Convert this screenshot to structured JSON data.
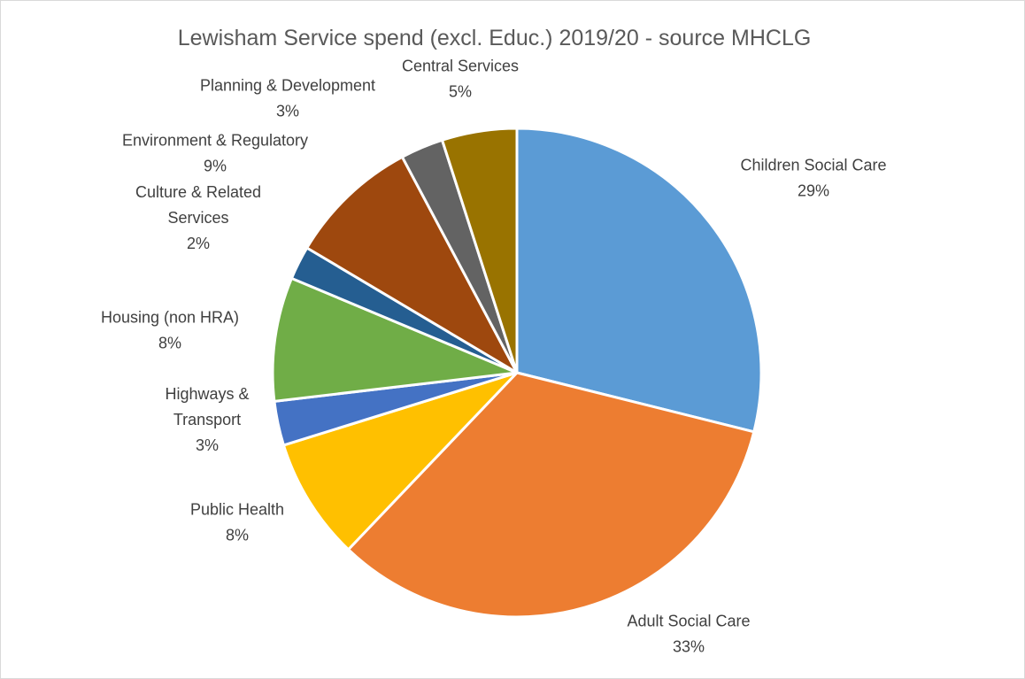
{
  "chart_data": {
    "type": "pie",
    "title": "Lewisham Service spend (excl. Educ.) 2019/20 - source MHCLG",
    "slices": [
      {
        "name": "Children Social Care",
        "label_lines": [
          "Children Social Care"
        ],
        "percent_label": "29%",
        "value": 28.6,
        "color": "#5B9BD5"
      },
      {
        "name": "Adult Social Care",
        "label_lines": [
          "Adult Social Care"
        ],
        "percent_label": "33%",
        "value": 32.9,
        "color": "#ED7D31"
      },
      {
        "name": "Public Health",
        "label_lines": [
          "Public Health"
        ],
        "percent_label": "8%",
        "value": 8.0,
        "color": "#FFC000"
      },
      {
        "name": "Highways & Transport",
        "label_lines": [
          "Highways &",
          "Transport"
        ],
        "percent_label": "3%",
        "value": 2.9,
        "color": "#4472C4"
      },
      {
        "name": "Housing (non HRA)",
        "label_lines": [
          "Housing (non HRA)"
        ],
        "percent_label": "8%",
        "value": 8.1,
        "color": "#70AD47"
      },
      {
        "name": "Culture & Related Services",
        "label_lines": [
          "Culture & Related",
          "Services"
        ],
        "percent_label": "2%",
        "value": 2.2,
        "color": "#255E91"
      },
      {
        "name": "Environment & Regulatory",
        "label_lines": [
          "Environment & Regulatory"
        ],
        "percent_label": "9%",
        "value": 8.6,
        "color": "#9E480E"
      },
      {
        "name": "Planning & Development",
        "label_lines": [
          "Planning & Development"
        ],
        "percent_label": "3%",
        "value": 2.8,
        "color": "#636363"
      },
      {
        "name": "Central Services",
        "label_lines": [
          "Central Services"
        ],
        "percent_label": "5%",
        "value": 4.9,
        "color": "#997300"
      }
    ]
  }
}
